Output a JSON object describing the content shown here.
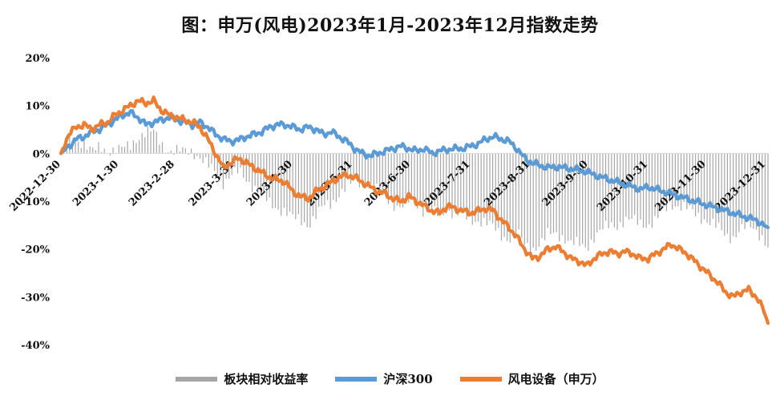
{
  "colors": {
    "bar": "#a6a6a6",
    "hs300": "#5b9bd5",
    "wind": "#ed7d31",
    "zero": "#d9d9d9"
  },
  "chart_data": {
    "type": "line",
    "title": "图：申万(风电)2023年1月-2023年12月指数走势",
    "ylim": [
      -40,
      20
    ],
    "y_ticks": [
      20,
      10,
      0,
      -10,
      -20,
      -30,
      -40
    ],
    "y_tick_labels": [
      "20%",
      "10%",
      "0%",
      "-10%",
      "-20%",
      "-30%",
      "-40%"
    ],
    "x_ticks": [
      0,
      30,
      59,
      90,
      120,
      151,
      181,
      212,
      243,
      273,
      304,
      334,
      365
    ],
    "x_tick_labels": [
      "2022-12-30",
      "2023-1-30",
      "2023-2-28",
      "2023-3-31",
      "2023-4-30",
      "2023-5-31",
      "2023-6-30",
      "2023-7-31",
      "2023-8-31",
      "2023-9-30",
      "2023-10-31",
      "2023-11-30",
      "2023-12-31"
    ],
    "x_max": 366,
    "legend": [
      "板块相对收益率",
      "沪深300",
      "风电设备（申万）"
    ],
    "series": [
      {
        "name": "沪深300",
        "type": "line",
        "points": [
          [
            0,
            0
          ],
          [
            4,
            1.5
          ],
          [
            8,
            3
          ],
          [
            12,
            3.5
          ],
          [
            16,
            4.5
          ],
          [
            20,
            5
          ],
          [
            24,
            6
          ],
          [
            28,
            7
          ],
          [
            32,
            8
          ],
          [
            36,
            8.5
          ],
          [
            40,
            7.5
          ],
          [
            44,
            6
          ],
          [
            48,
            6.5
          ],
          [
            52,
            7
          ],
          [
            56,
            7.5
          ],
          [
            60,
            7
          ],
          [
            64,
            6.5
          ],
          [
            68,
            6
          ],
          [
            72,
            6.5
          ],
          [
            76,
            5.5
          ],
          [
            80,
            4
          ],
          [
            84,
            3
          ],
          [
            88,
            2.5
          ],
          [
            92,
            2.8
          ],
          [
            96,
            3.5
          ],
          [
            100,
            4
          ],
          [
            104,
            4.5
          ],
          [
            108,
            5.5
          ],
          [
            112,
            6
          ],
          [
            116,
            6
          ],
          [
            120,
            5.5
          ],
          [
            124,
            5
          ],
          [
            128,
            5.5
          ],
          [
            132,
            5
          ],
          [
            136,
            4
          ],
          [
            140,
            4.5
          ],
          [
            144,
            3.5
          ],
          [
            148,
            2.5
          ],
          [
            152,
            1
          ],
          [
            156,
            0
          ],
          [
            160,
            -0.5
          ],
          [
            164,
            0
          ],
          [
            168,
            0.5
          ],
          [
            172,
            1
          ],
          [
            176,
            1.5
          ],
          [
            180,
            1
          ],
          [
            184,
            0.5
          ],
          [
            188,
            1
          ],
          [
            192,
            0
          ],
          [
            196,
            0.5
          ],
          [
            200,
            0.8
          ],
          [
            204,
            1
          ],
          [
            208,
            1
          ],
          [
            212,
            1.5
          ],
          [
            216,
            2
          ],
          [
            220,
            3
          ],
          [
            224,
            3.5
          ],
          [
            228,
            3
          ],
          [
            232,
            2.5
          ],
          [
            236,
            1
          ],
          [
            240,
            -1
          ],
          [
            244,
            -2
          ],
          [
            248,
            -2.5
          ],
          [
            252,
            -3
          ],
          [
            256,
            -2.8
          ],
          [
            260,
            -3
          ],
          [
            264,
            -3.2
          ],
          [
            268,
            -3.5
          ],
          [
            272,
            -3.8
          ],
          [
            276,
            -4.5
          ],
          [
            280,
            -5
          ],
          [
            284,
            -5.5
          ],
          [
            288,
            -6
          ],
          [
            292,
            -6.5
          ],
          [
            296,
            -7
          ],
          [
            300,
            -7.5
          ],
          [
            304,
            -7
          ],
          [
            308,
            -7.5
          ],
          [
            312,
            -8
          ],
          [
            316,
            -8.5
          ],
          [
            320,
            -9
          ],
          [
            324,
            -9.5
          ],
          [
            328,
            -10
          ],
          [
            332,
            -10.5
          ],
          [
            336,
            -11
          ],
          [
            340,
            -11.5
          ],
          [
            344,
            -12
          ],
          [
            348,
            -12.5
          ],
          [
            352,
            -13
          ],
          [
            356,
            -13.5
          ],
          [
            360,
            -14
          ],
          [
            364,
            -15
          ],
          [
            366,
            -15.5
          ]
        ]
      },
      {
        "name": "风电设备（申万）",
        "type": "line",
        "points": [
          [
            0,
            0
          ],
          [
            4,
            4
          ],
          [
            8,
            5.5
          ],
          [
            12,
            6
          ],
          [
            16,
            5
          ],
          [
            20,
            6
          ],
          [
            24,
            6.5
          ],
          [
            28,
            8
          ],
          [
            32,
            9
          ],
          [
            36,
            10
          ],
          [
            40,
            11
          ],
          [
            44,
            10.5
          ],
          [
            48,
            11
          ],
          [
            52,
            9
          ],
          [
            56,
            8
          ],
          [
            60,
            7.5
          ],
          [
            64,
            7
          ],
          [
            68,
            6.5
          ],
          [
            72,
            5.5
          ],
          [
            76,
            3
          ],
          [
            80,
            0
          ],
          [
            84,
            -3
          ],
          [
            88,
            -2
          ],
          [
            92,
            -1
          ],
          [
            96,
            -2
          ],
          [
            100,
            -3
          ],
          [
            104,
            -4
          ],
          [
            108,
            -5
          ],
          [
            112,
            -5.5
          ],
          [
            116,
            -6
          ],
          [
            120,
            -8
          ],
          [
            124,
            -9
          ],
          [
            128,
            -9.5
          ],
          [
            132,
            -8
          ],
          [
            136,
            -7
          ],
          [
            140,
            -6
          ],
          [
            144,
            -5
          ],
          [
            148,
            -4.5
          ],
          [
            152,
            -5
          ],
          [
            156,
            -6
          ],
          [
            160,
            -7
          ],
          [
            164,
            -8
          ],
          [
            168,
            -8.5
          ],
          [
            172,
            -9.5
          ],
          [
            176,
            -10
          ],
          [
            180,
            -9
          ],
          [
            184,
            -10
          ],
          [
            188,
            -11
          ],
          [
            192,
            -12
          ],
          [
            196,
            -12.5
          ],
          [
            200,
            -11
          ],
          [
            204,
            -11.5
          ],
          [
            208,
            -12
          ],
          [
            212,
            -12.5
          ],
          [
            216,
            -12
          ],
          [
            220,
            -11.5
          ],
          [
            224,
            -12
          ],
          [
            228,
            -14
          ],
          [
            232,
            -15.5
          ],
          [
            236,
            -17.5
          ],
          [
            240,
            -20
          ],
          [
            244,
            -22
          ],
          [
            248,
            -21.5
          ],
          [
            252,
            -20
          ],
          [
            256,
            -19.5
          ],
          [
            260,
            -20.5
          ],
          [
            264,
            -22
          ],
          [
            268,
            -22.5
          ],
          [
            272,
            -23.5
          ],
          [
            276,
            -22
          ],
          [
            280,
            -21
          ],
          [
            284,
            -20.5
          ],
          [
            288,
            -21
          ],
          [
            292,
            -20.5
          ],
          [
            296,
            -21
          ],
          [
            300,
            -22
          ],
          [
            304,
            -22
          ],
          [
            308,
            -21
          ],
          [
            312,
            -20
          ],
          [
            316,
            -19
          ],
          [
            320,
            -20
          ],
          [
            324,
            -21
          ],
          [
            328,
            -22.5
          ],
          [
            332,
            -24
          ],
          [
            336,
            -25.5
          ],
          [
            340,
            -27
          ],
          [
            344,
            -29
          ],
          [
            348,
            -30
          ],
          [
            352,
            -29
          ],
          [
            356,
            -28.5
          ],
          [
            360,
            -30
          ],
          [
            364,
            -33
          ],
          [
            366,
            -35.5
          ]
        ]
      }
    ],
    "bar_series": {
      "name": "板块相对收益率",
      "type": "bar",
      "points": [
        [
          0,
          0
        ],
        [
          4,
          2.5
        ],
        [
          8,
          2.5
        ],
        [
          12,
          2.5
        ],
        [
          16,
          0.5
        ],
        [
          20,
          1
        ],
        [
          24,
          0.5
        ],
        [
          28,
          1
        ],
        [
          32,
          1
        ],
        [
          36,
          1.5
        ],
        [
          40,
          3.5
        ],
        [
          44,
          4.5
        ],
        [
          48,
          4.5
        ],
        [
          52,
          2
        ],
        [
          56,
          0.5
        ],
        [
          60,
          0.5
        ],
        [
          64,
          0.5
        ],
        [
          68,
          0.5
        ],
        [
          72,
          -1
        ],
        [
          76,
          -2.5
        ],
        [
          80,
          -4
        ],
        [
          84,
          -6
        ],
        [
          88,
          -4.5
        ],
        [
          92,
          -3.8
        ],
        [
          96,
          -5.5
        ],
        [
          100,
          -7
        ],
        [
          104,
          -8.5
        ],
        [
          108,
          -10.5
        ],
        [
          112,
          -11.5
        ],
        [
          116,
          -12
        ],
        [
          120,
          -13.5
        ],
        [
          124,
          -14
        ],
        [
          128,
          -15
        ],
        [
          132,
          -13
        ],
        [
          136,
          -11
        ],
        [
          140,
          -10.5
        ],
        [
          144,
          -8.5
        ],
        [
          148,
          -7
        ],
        [
          152,
          -6
        ],
        [
          156,
          -6
        ],
        [
          160,
          -6.5
        ],
        [
          164,
          -8
        ],
        [
          168,
          -9
        ],
        [
          172,
          -10.5
        ],
        [
          176,
          -11.5
        ],
        [
          180,
          -10
        ],
        [
          184,
          -10.5
        ],
        [
          188,
          -12
        ],
        [
          192,
          -12
        ],
        [
          196,
          -13
        ],
        [
          200,
          -11.8
        ],
        [
          204,
          -12.5
        ],
        [
          208,
          -13
        ],
        [
          212,
          -14
        ],
        [
          216,
          -14
        ],
        [
          220,
          -14.5
        ],
        [
          224,
          -15.5
        ],
        [
          228,
          -17
        ],
        [
          232,
          -18
        ],
        [
          236,
          -16.5
        ],
        [
          240,
          -19
        ],
        [
          244,
          -20
        ],
        [
          248,
          -19
        ],
        [
          252,
          -17
        ],
        [
          256,
          -16.7
        ],
        [
          260,
          -17.5
        ],
        [
          264,
          -18.8
        ],
        [
          268,
          -19
        ],
        [
          272,
          -19.7
        ],
        [
          276,
          -17.5
        ],
        [
          280,
          -16
        ],
        [
          284,
          -15
        ],
        [
          288,
          -15
        ],
        [
          292,
          -14
        ],
        [
          296,
          -14
        ],
        [
          300,
          -14.5
        ],
        [
          304,
          -15
        ],
        [
          308,
          -14
        ],
        [
          312,
          -12
        ],
        [
          316,
          -10.5
        ],
        [
          320,
          -11
        ],
        [
          324,
          -11.5
        ],
        [
          328,
          -12.5
        ],
        [
          332,
          -13.5
        ],
        [
          336,
          -14.5
        ],
        [
          340,
          -15.5
        ],
        [
          344,
          -17
        ],
        [
          348,
          -17.5
        ],
        [
          352,
          -16
        ],
        [
          356,
          -15
        ],
        [
          360,
          -16
        ],
        [
          364,
          -18
        ],
        [
          366,
          -20
        ]
      ]
    }
  }
}
